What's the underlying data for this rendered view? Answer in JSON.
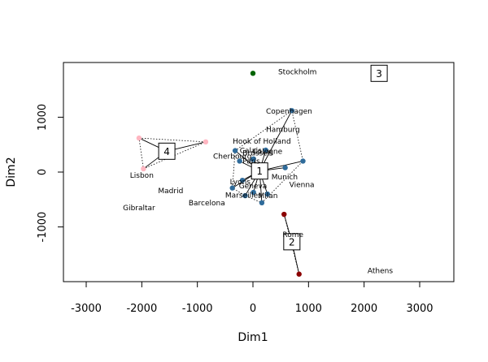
{
  "chart_data": {
    "type": "scatter",
    "title": "",
    "xlabel": "Dim1",
    "ylabel": "Dim2",
    "xlim": [
      -3000,
      3000
    ],
    "ylim": [
      -2000,
      2000
    ],
    "xticks": [
      -3000,
      -2000,
      -1000,
      0,
      1000,
      2000,
      3000
    ],
    "xtick_labels": [
      "-3000",
      "-2000",
      "-1000",
      "0",
      "1000",
      "2000",
      "3000"
    ],
    "yticks": [
      -1000,
      0,
      1000
    ],
    "ytick_labels": [
      "-1000",
      "0",
      "1000"
    ],
    "cities": [
      {
        "name": "Athens",
        "x": 2290,
        "y": -1800
      },
      {
        "name": "Barcelona",
        "x": -830,
        "y": -560
      },
      {
        "name": "Brussels",
        "x": 90,
        "y": 350
      },
      {
        "name": "Calais",
        "x": -40,
        "y": 390
      },
      {
        "name": "Cherbourg",
        "x": -370,
        "y": 290
      },
      {
        "name": "Cologne",
        "x": 260,
        "y": 380
      },
      {
        "name": "Copenhagen",
        "x": 650,
        "y": 1110
      },
      {
        "name": "Geneva",
        "x": 0,
        "y": -250
      },
      {
        "name": "Gibraltar",
        "x": -2050,
        "y": -650
      },
      {
        "name": "Hamburg",
        "x": 540,
        "y": 780
      },
      {
        "name": "Hook of Holland",
        "x": 160,
        "y": 560
      },
      {
        "name": "Lisbon",
        "x": -2000,
        "y": -60
      },
      {
        "name": "Lyons",
        "x": -230,
        "y": -180
      },
      {
        "name": "Madrid",
        "x": -1480,
        "y": -340
      },
      {
        "name": "Marseilles",
        "x": -170,
        "y": -420
      },
      {
        "name": "Milan",
        "x": 270,
        "y": -430
      },
      {
        "name": "Munich",
        "x": 570,
        "y": -90
      },
      {
        "name": "Paris",
        "x": -30,
        "y": 200
      },
      {
        "name": "Rome",
        "x": 720,
        "y": -1140
      },
      {
        "name": "Stockholm",
        "x": 800,
        "y": 1830
      },
      {
        "name": "Vienna",
        "x": 880,
        "y": -230
      }
    ],
    "clusters": [
      {
        "id": "1",
        "color": "#2f6b9a",
        "center": {
          "x": 120,
          "y": 20
        },
        "points": [
          {
            "x": -320,
            "y": 390
          },
          {
            "x": -240,
            "y": 200
          },
          {
            "x": 0,
            "y": 230
          },
          {
            "x": 10,
            "y": 240
          },
          {
            "x": 230,
            "y": 400
          },
          {
            "x": 700,
            "y": 1120
          },
          {
            "x": 900,
            "y": 200
          },
          {
            "x": 580,
            "y": 80
          },
          {
            "x": 260,
            "y": -400
          },
          {
            "x": 160,
            "y": -560
          },
          {
            "x": 10,
            "y": -370
          },
          {
            "x": -140,
            "y": -430
          },
          {
            "x": -370,
            "y": -290
          },
          {
            "x": -190,
            "y": -150
          }
        ]
      },
      {
        "id": "2",
        "color": "#8b0000",
        "center": {
          "x": 700,
          "y": -1270
        },
        "points": [
          {
            "x": 560,
            "y": -770
          },
          {
            "x": 830,
            "y": -1860
          }
        ]
      },
      {
        "id": "3",
        "color": "#006400",
        "center": {
          "x": 2270,
          "y": 1800
        },
        "points": [
          {
            "x": 0,
            "y": 1800
          }
        ]
      },
      {
        "id": "4",
        "color": "#ffb6c1",
        "center": {
          "x": -1550,
          "y": 380
        },
        "points": [
          {
            "x": -2050,
            "y": 620
          },
          {
            "x": -850,
            "y": 550
          },
          {
            "x": -1970,
            "y": 60
          }
        ]
      }
    ]
  }
}
